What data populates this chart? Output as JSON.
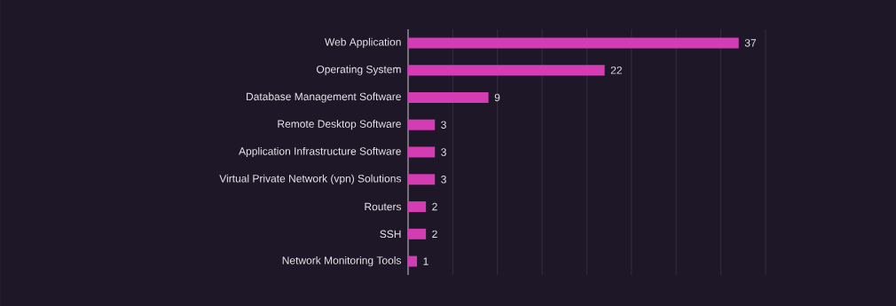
{
  "chart_data": {
    "type": "bar",
    "orientation": "horizontal",
    "categories": [
      "Web Application",
      "Operating System",
      "Database Management Software",
      "Remote Desktop Software",
      "Application Infrastructure Software",
      "Virtual Private Network (vpn) Solutions",
      "Routers",
      "SSH",
      "Network Monitoring Tools"
    ],
    "values": [
      37,
      22,
      9,
      3,
      3,
      3,
      2,
      2,
      1
    ],
    "color": "#d43cb4",
    "tick_labels": "y",
    "grid": "x",
    "data_labels": true
  }
}
